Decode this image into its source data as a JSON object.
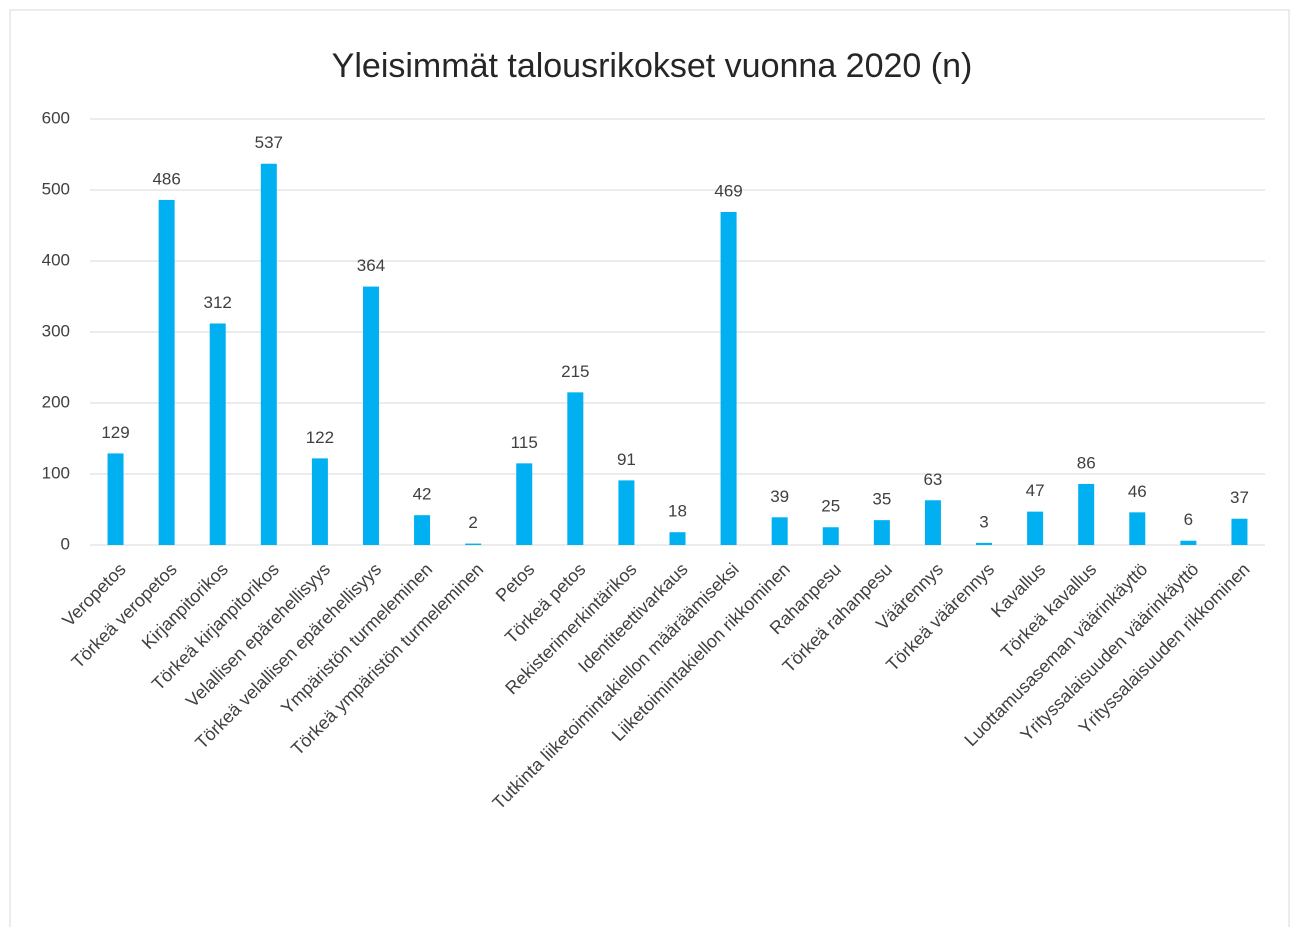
{
  "chart_data": {
    "type": "bar",
    "title": "Yleisimmät talousrikokset vuonna 2020 (n)",
    "categories": [
      "Veropetos",
      "Törkeä veropetos",
      "Kirjanpitorikos",
      "Törkeä kirjanpitorikos",
      "Velallisen epärehellisyys",
      "Törkeä velallisen epärehellisyys",
      "Ympäristön turmeleminen",
      "Törkeä ympäristön turmeleminen",
      "Petos",
      "Törkeä petos",
      "Rekisterimerkintärikos",
      "Identiteettivarkaus",
      "Tutkinta liiketoimintakiellon määräämiseksi",
      "Liiketoimintakiellon rikkominen",
      "Rahanpesu",
      "Törkeä rahanpesu",
      "Väärennys",
      "Törkeä väärennys",
      "Kavallus",
      "Törkeä kavallus",
      "Luottamusaseman väärinkäyttö",
      "Yrityssalaisuuden väärinkäyttö",
      "Yrityssalaisuuden rikkominen"
    ],
    "values": [
      129,
      486,
      312,
      537,
      122,
      364,
      42,
      2,
      115,
      215,
      91,
      18,
      469,
      39,
      25,
      35,
      63,
      3,
      47,
      86,
      46,
      6,
      37
    ],
    "color": "#00b0f0",
    "ylim": [
      0,
      600
    ],
    "yticks": [
      0,
      100,
      200,
      300,
      400,
      500,
      600
    ],
    "grid": true,
    "data_labels": true
  }
}
